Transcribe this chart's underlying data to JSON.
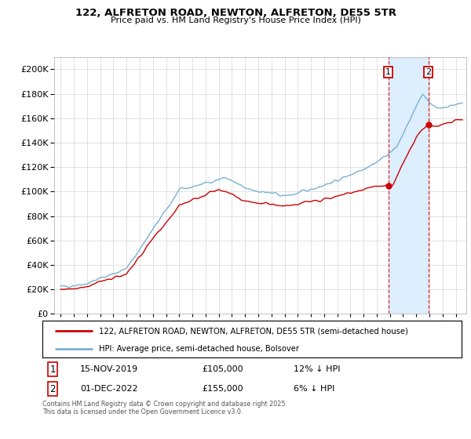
{
  "title": "122, ALFRETON ROAD, NEWTON, ALFRETON, DE55 5TR",
  "subtitle": "Price paid vs. HM Land Registry's House Price Index (HPI)",
  "legend_line1": "122, ALFRETON ROAD, NEWTON, ALFRETON, DE55 5TR (semi-detached house)",
  "legend_line2": "HPI: Average price, semi-detached house, Bolsover",
  "annotation1_date": "15-NOV-2019",
  "annotation1_price": "£105,000",
  "annotation1_hpi": "12% ↓ HPI",
  "annotation2_date": "01-DEC-2022",
  "annotation2_price": "£155,000",
  "annotation2_hpi": "6% ↓ HPI",
  "footnote": "Contains HM Land Registry data © Crown copyright and database right 2025.\nThis data is licensed under the Open Government Licence v3.0.",
  "property_color": "#cc0000",
  "hpi_color": "#7ab0d4",
  "shade_color": "#ddeeff",
  "ylim": [
    0,
    210000
  ],
  "yticks": [
    0,
    20000,
    40000,
    60000,
    80000,
    100000,
    120000,
    140000,
    160000,
    180000,
    200000
  ],
  "sale1_year": 2019.88,
  "sale1_price": 105000,
  "sale2_year": 2022.92,
  "sale2_price": 155000,
  "xmin": 1994.5,
  "xmax": 2025.8,
  "background_color": "#ffffff",
  "grid_color": "#dddddd"
}
